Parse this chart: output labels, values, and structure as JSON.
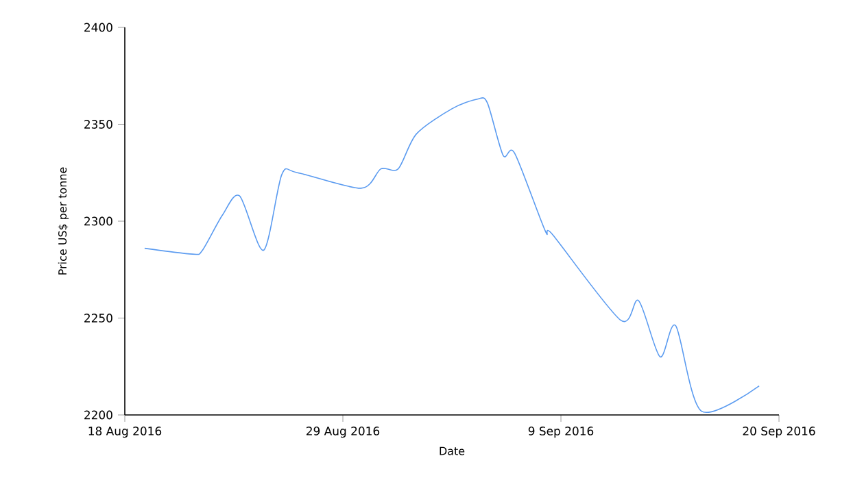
{
  "chart_data": {
    "type": "line",
    "xlabel": "Date",
    "ylabel": "Price US$ per tonne",
    "x": [
      "2016-08-19",
      "2016-08-21T10:00",
      "2016-08-21T22:00",
      "2016-08-22T22:00",
      "2016-08-23T19:00",
      "2016-08-25",
      "2016-08-25T22:00",
      "2016-08-26T17:00",
      "2016-08-29T22:00",
      "2016-08-30T22:00",
      "2016-08-31T19:00",
      "2016-09-01T17:00",
      "2016-09-03T12:00",
      "2016-09-04T19:00",
      "2016-09-05T07:00",
      "2016-09-06T02:00",
      "2016-09-06T16:00",
      "2016-09-08T05:00",
      "2016-09-08T14:00",
      "2016-09-12",
      "2016-09-12T22:00",
      "2016-09-14",
      "2016-09-14T19:00",
      "2016-09-16T02:00",
      "2016-09-19"
    ],
    "series": [
      {
        "color": "#5b9bf0",
        "values": [
          2286,
          2283,
          2285,
          2303,
          2313,
          2285,
          2324,
          2325,
          2317,
          2327,
          2327,
          2345,
          2358,
          2363,
          2361,
          2334,
          2335,
          2295,
          2293,
          2249,
          2259,
          2230,
          2246,
          2202,
          2215
        ]
      }
    ],
    "xlim": [
      "2016-08-18",
      "2016-09-20"
    ],
    "xticks": [
      {
        "value": "2016-08-18",
        "label": "18 Aug 2016"
      },
      {
        "value": "2016-08-29",
        "label": "29 Aug 2016"
      },
      {
        "value": "2016-09-09",
        "label": "9 Sep 2016"
      },
      {
        "value": "2016-09-20",
        "label": "20 Sep 2016"
      }
    ],
    "ylim": [
      2200,
      2400
    ],
    "yticks": [
      2200,
      2250,
      2300,
      2350,
      2400
    ],
    "marker": "none",
    "line_style": "solid"
  }
}
